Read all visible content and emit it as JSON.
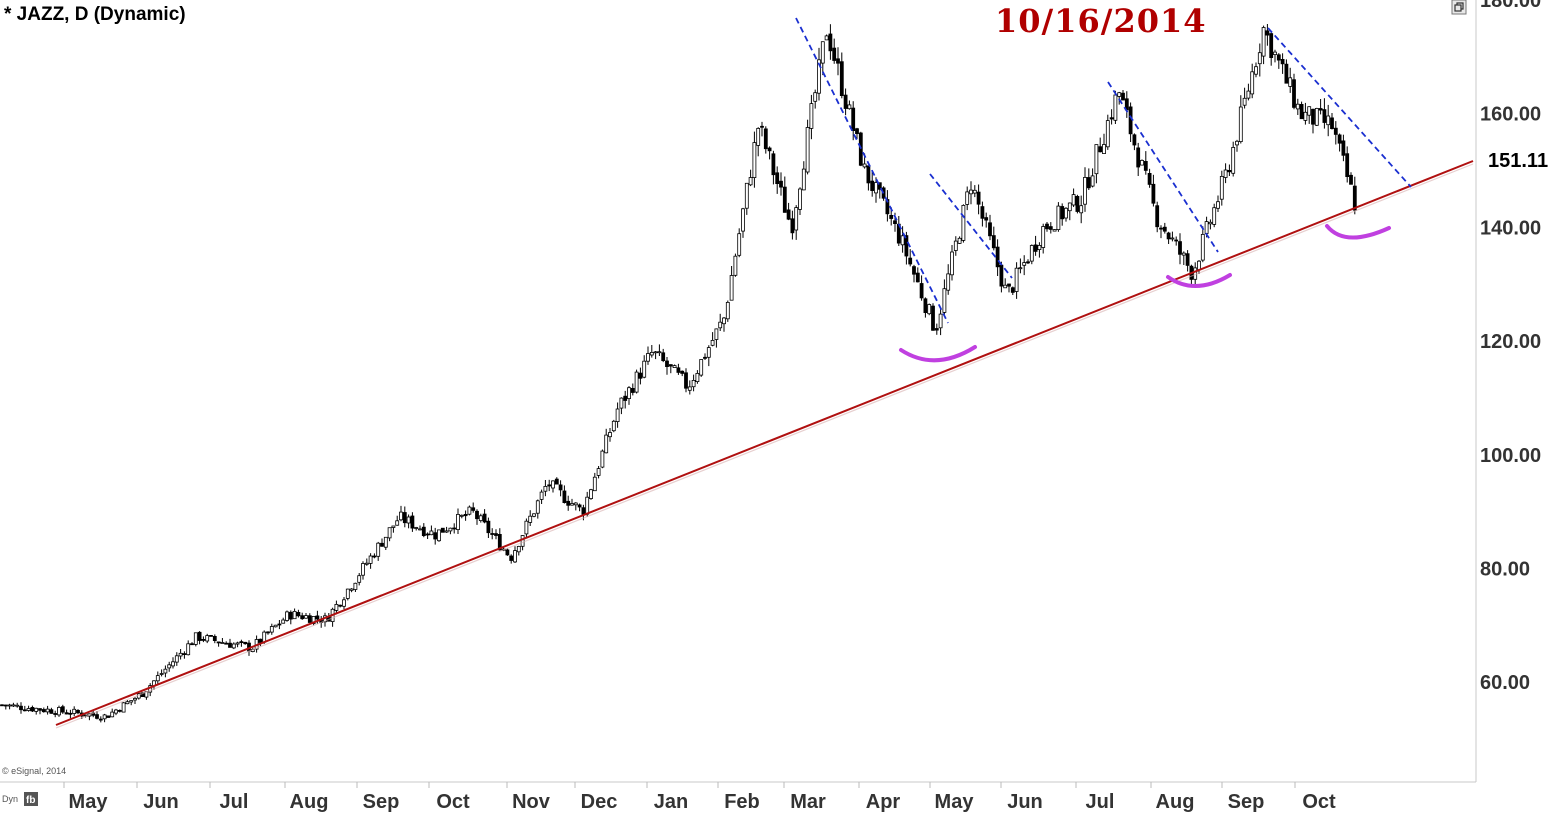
{
  "header": {
    "title": "* JAZZ, D (Dynamic)",
    "annotation_date": "10/16/2014",
    "copyright": "© eSignal, 2014",
    "dyn_label": "Dyn"
  },
  "colors": {
    "trendline": "#b01010",
    "downtrend": "#1a2fd0",
    "bounce_marks": "#c040e0",
    "date_text": "#b00000",
    "candle_up": "#ffffff",
    "candle_down": "#000000"
  },
  "icons": [
    "window-restore-icon",
    "chart-settings-icon"
  ],
  "chart_data": {
    "type": "candlestick",
    "title": "* JAZZ, D (Dynamic)",
    "ylim": [
      40,
      180
    ],
    "ytick_labels": [
      "60.00",
      "80.00",
      "100.00",
      "120.00",
      "140.00",
      "160.00",
      "180.00"
    ],
    "last_price": "151.11",
    "xtick_labels": [
      "May",
      "Jun",
      "Jul",
      "Aug",
      "Sep",
      "Oct",
      "Nov",
      "Dec",
      "Jan",
      "Feb",
      "Mar",
      "Apr",
      "May",
      "Jun",
      "Jul",
      "Aug",
      "Sep",
      "Oct"
    ],
    "grid": false,
    "price_path": [
      [
        "Apr 2013",
        56
      ],
      [
        "May 2013",
        54
      ],
      [
        "May 2013",
        58
      ],
      [
        "Jun 2013",
        68
      ],
      [
        "Jul 2013",
        66
      ],
      [
        "Jul 2013",
        72
      ],
      [
        "Aug 2013",
        71
      ],
      [
        "Aug 2013",
        80
      ],
      [
        "Sep 2013",
        89
      ],
      [
        "Sep 2013",
        86
      ],
      [
        "Oct 2013",
        90
      ],
      [
        "Oct 2013",
        82
      ],
      [
        "Nov 2013",
        95
      ],
      [
        "Nov 2013",
        90
      ],
      [
        "Dec 2013",
        108
      ],
      [
        "Dec 2013",
        118
      ],
      [
        "Jan 2014",
        112
      ],
      [
        "Jan 2014",
        124
      ],
      [
        "Feb 2014",
        158
      ],
      [
        "Feb 2014",
        140
      ],
      [
        "Mar 2014",
        175
      ],
      [
        "Mar 2014",
        150
      ],
      [
        "Apr 2014",
        138
      ],
      [
        "Apr 2014",
        122
      ],
      [
        "May 2014",
        148
      ],
      [
        "May 2014",
        128
      ],
      [
        "Jun 2014",
        140
      ],
      [
        "Jun 2014",
        145
      ],
      [
        "Jul 2014",
        164
      ],
      [
        "Jul 2014",
        142
      ],
      [
        "Aug 2014",
        132
      ],
      [
        "Aug 2014",
        150
      ],
      [
        "Sep 2014",
        175
      ],
      [
        "Sep 2014",
        160
      ],
      [
        "Oct 2014",
        158
      ],
      [
        "Oct 2014",
        143
      ],
      [
        "Oct 2014",
        151
      ]
    ],
    "trendline": {
      "start": [
        "May 2013",
        52
      ],
      "end": [
        "Oct 2014",
        152
      ]
    },
    "downtrend_lines": [
      {
        "start": [
          "Mar 2014",
          175
        ],
        "end": [
          "May 2014",
          122
        ]
      },
      {
        "start": [
          "Apr 2014",
          148
        ],
        "end": [
          "Jun 2014",
          130
        ]
      },
      {
        "start": [
          "Jul 2014",
          164
        ],
        "end": [
          "Aug 2014",
          135
        ]
      },
      {
        "start": [
          "Sep 2014",
          176
        ],
        "end": [
          "Oct 2014",
          147
        ]
      }
    ],
    "bounce_marks": [
      "May 2014",
      "Aug 2014",
      "Oct 2014"
    ]
  }
}
